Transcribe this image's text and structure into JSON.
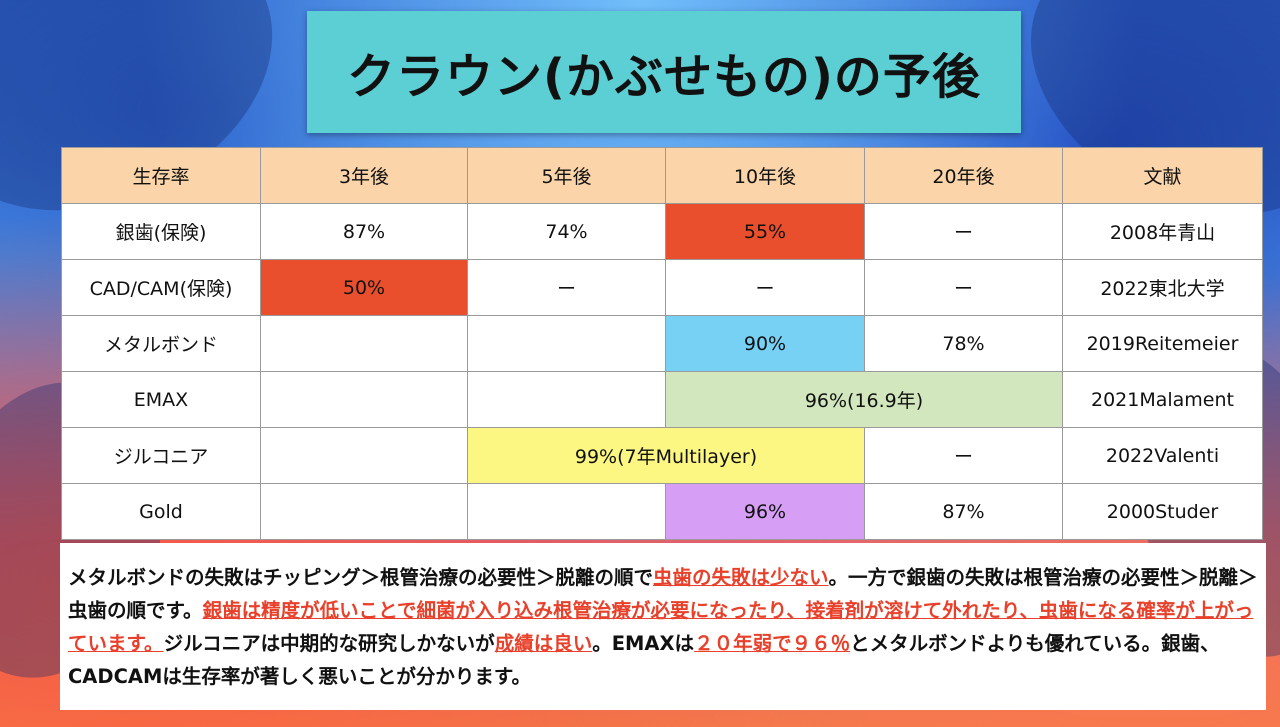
{
  "title": "クラウン(かぶせもの)の予後",
  "table": {
    "headers": [
      "生存率",
      "3年後",
      "5年後",
      "10年後",
      "20年後",
      "文献"
    ],
    "rows": [
      {
        "name": "銀歯(保険)",
        "y3": "87%",
        "y5": "74%",
        "y10": "55%",
        "y20": "ー",
        "ref": "2008年青山"
      },
      {
        "name": "CAD/CAM(保険)",
        "y3": "50%",
        "y5": "ー",
        "y10": "ー",
        "y20": "ー",
        "ref": "2022東北大学"
      },
      {
        "name": "メタルボンド",
        "y10": "90%",
        "y20": "78%",
        "ref": "2019Reitemeier"
      },
      {
        "name": "EMAX",
        "y10_20": "96%(16.9年)",
        "ref": "2021Malament"
      },
      {
        "name": "ジルコニア",
        "y5_10": "99%(7年Multilayer)",
        "y20": "ー",
        "ref": "2022Valenti"
      },
      {
        "name": "Gold",
        "y10": "96%",
        "y20": "87%",
        "ref": "2000Studer"
      }
    ]
  },
  "colors": {
    "header": "#fbd5a9",
    "red": "#ea4f2d",
    "blue": "#76d1f5",
    "green": "#d2e7bd",
    "yellow": "#fcf682",
    "purple": "#d69ff5",
    "title_bg": "#5ccfd4",
    "emphasis_text": "#e8402a"
  },
  "note": {
    "s1": "メタルボンドの失敗はチッピング＞根管治療の必要性＞脱離の順で",
    "h1": "虫歯の失敗は少ない",
    "s2": "。一方で銀歯の失敗は根管治療の必要性＞脱離＞虫歯の順です。",
    "h2": "銀歯は精度が低いことで細菌が入り込み根管治療が必要になったり、接着剤が溶けて外れたり、虫歯になる確率が上がっています。",
    "s3": "ジルコニアは中期的な研究しかないが",
    "h3": "成績は良い",
    "s4": "。EMAXは",
    "h4": "２０年弱で９６％",
    "s5": "とメタルボンドよりも優れている。銀歯、CADCAMは生存率が著しく悪いことが分かります。"
  }
}
